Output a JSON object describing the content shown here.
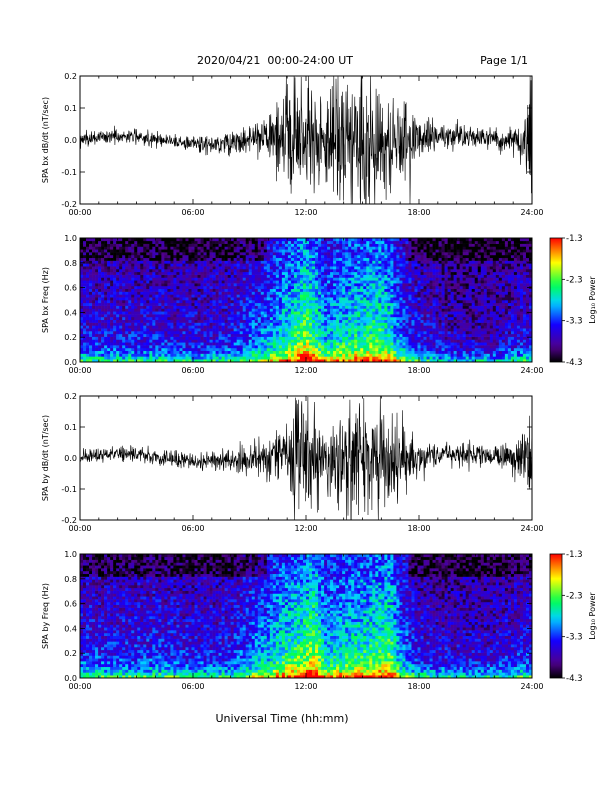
{
  "header": {
    "date_range": "2020/04/21  00:00-24:00 UT",
    "page": "Page 1/1"
  },
  "footer": {
    "xlabel": "Universal Time (hh:mm)"
  },
  "colors": {
    "trace": "#000000",
    "spectrogram_low": "#000000",
    "spectrogram_high": "#ff0000"
  },
  "chart_data": [
    {
      "type": "line",
      "ylabel": "SPA bx dB/dt (nT/sec)",
      "xlim": [
        0,
        24
      ],
      "ylim": [
        -0.2,
        0.2
      ],
      "x_ticks": [
        "00:00",
        "06:00",
        "12:00",
        "18:00",
        "24:00"
      ],
      "y_ticks": [
        "-0.2",
        "-0.1",
        "0.0",
        "0.1",
        "0.2"
      ],
      "y_tick_values": [
        -0.2,
        -0.1,
        0.0,
        0.1,
        0.2
      ],
      "envelope_hours": [
        0,
        1,
        2,
        3,
        4,
        5,
        6,
        7,
        8,
        9,
        10,
        10.5,
        11,
        11.5,
        12,
        12.5,
        13,
        13.5,
        14,
        14.5,
        15,
        15.5,
        16,
        16.5,
        17,
        17.5,
        18,
        19,
        20,
        21,
        22,
        23,
        23.5,
        24
      ],
      "envelope_amplitude": [
        0.02,
        0.02,
        0.02,
        0.02,
        0.022,
        0.022,
        0.025,
        0.028,
        0.035,
        0.04,
        0.06,
        0.1,
        0.16,
        0.2,
        0.15,
        0.1,
        0.13,
        0.2,
        0.15,
        0.2,
        0.2,
        0.18,
        0.15,
        0.12,
        0.15,
        0.12,
        0.06,
        0.04,
        0.035,
        0.03,
        0.03,
        0.04,
        0.06,
        0.2
      ]
    },
    {
      "type": "heatmap",
      "ylabel": "SPA bx Freq (Hz)",
      "colorbar_label": "Log₁₀ Power",
      "xlim": [
        0,
        24
      ],
      "ylim": [
        0,
        1.0
      ],
      "x_ticks": [
        "00:00",
        "06:00",
        "12:00",
        "18:00",
        "24:00"
      ],
      "y_ticks": [
        "0.0",
        "0.2",
        "0.4",
        "0.6",
        "0.8",
        "1.0"
      ],
      "y_tick_values": [
        0,
        0.2,
        0.4,
        0.6,
        0.8,
        1.0
      ],
      "colorbar_ticks": [
        "-1.3",
        "-2.3",
        "-3.3",
        "-4.3"
      ],
      "colorbar_values": [
        -1.3,
        -2.3,
        -3.3,
        -4.3
      ],
      "crange": [
        -4.3,
        -1.3
      ],
      "activity_hours": [
        0,
        2,
        4,
        6,
        8,
        9,
        10,
        11,
        12,
        12.5,
        13,
        14,
        15,
        16,
        16.5,
        17,
        18,
        20,
        22,
        24
      ],
      "activity_level": [
        0.35,
        0.35,
        0.35,
        0.32,
        0.35,
        0.45,
        0.55,
        0.7,
        0.9,
        0.8,
        0.6,
        0.7,
        0.75,
        0.8,
        0.7,
        0.5,
        0.35,
        0.25,
        0.25,
        0.35
      ]
    },
    {
      "type": "line",
      "ylabel": "SPA by dB/dt (nT/sec)",
      "xlim": [
        0,
        24
      ],
      "ylim": [
        -0.2,
        0.2
      ],
      "x_ticks": [
        "00:00",
        "06:00",
        "12:00",
        "18:00",
        "24:00"
      ],
      "y_ticks": [
        "-0.2",
        "-0.1",
        "0.0",
        "0.1",
        "0.2"
      ],
      "y_tick_values": [
        -0.2,
        -0.1,
        0.0,
        0.1,
        0.2
      ],
      "envelope_hours": [
        0,
        1,
        2,
        3,
        4,
        5,
        6,
        7,
        8,
        9,
        10,
        10.5,
        11,
        11.5,
        12,
        12.5,
        13,
        13.5,
        14,
        14.5,
        15,
        15.5,
        16,
        16.5,
        17,
        17.5,
        18,
        19,
        20,
        21,
        22,
        23,
        23.5,
        24
      ],
      "envelope_amplitude": [
        0.02,
        0.02,
        0.02,
        0.02,
        0.02,
        0.022,
        0.025,
        0.028,
        0.03,
        0.04,
        0.055,
        0.08,
        0.12,
        0.2,
        0.18,
        0.12,
        0.1,
        0.12,
        0.15,
        0.2,
        0.18,
        0.15,
        0.2,
        0.15,
        0.1,
        0.1,
        0.05,
        0.035,
        0.03,
        0.03,
        0.03,
        0.05,
        0.08,
        0.2
      ]
    },
    {
      "type": "heatmap",
      "ylabel": "SPA by Freq (Hz)",
      "colorbar_label": "Log₁₀ Power",
      "xlim": [
        0,
        24
      ],
      "ylim": [
        0,
        1.0
      ],
      "x_ticks": [
        "00:00",
        "06:00",
        "12:00",
        "18:00",
        "24:00"
      ],
      "y_ticks": [
        "0.0",
        "0.2",
        "0.4",
        "0.6",
        "0.8",
        "1.0"
      ],
      "y_tick_values": [
        0,
        0.2,
        0.4,
        0.6,
        0.8,
        1.0
      ],
      "colorbar_ticks": [
        "-1.3",
        "-2.3",
        "-3.3",
        "-4.3"
      ],
      "colorbar_values": [
        -1.3,
        -2.3,
        -3.3,
        -4.3
      ],
      "crange": [
        -4.3,
        -1.3
      ],
      "activity_hours": [
        0,
        2,
        4,
        6,
        8,
        9,
        10,
        11,
        12,
        12.5,
        13,
        14,
        15,
        16,
        16.5,
        17,
        18,
        20,
        22,
        24
      ],
      "activity_level": [
        0.4,
        0.38,
        0.4,
        0.35,
        0.38,
        0.5,
        0.6,
        0.75,
        0.85,
        0.95,
        0.65,
        0.7,
        0.75,
        0.8,
        0.85,
        0.55,
        0.35,
        0.3,
        0.3,
        0.4
      ]
    }
  ]
}
